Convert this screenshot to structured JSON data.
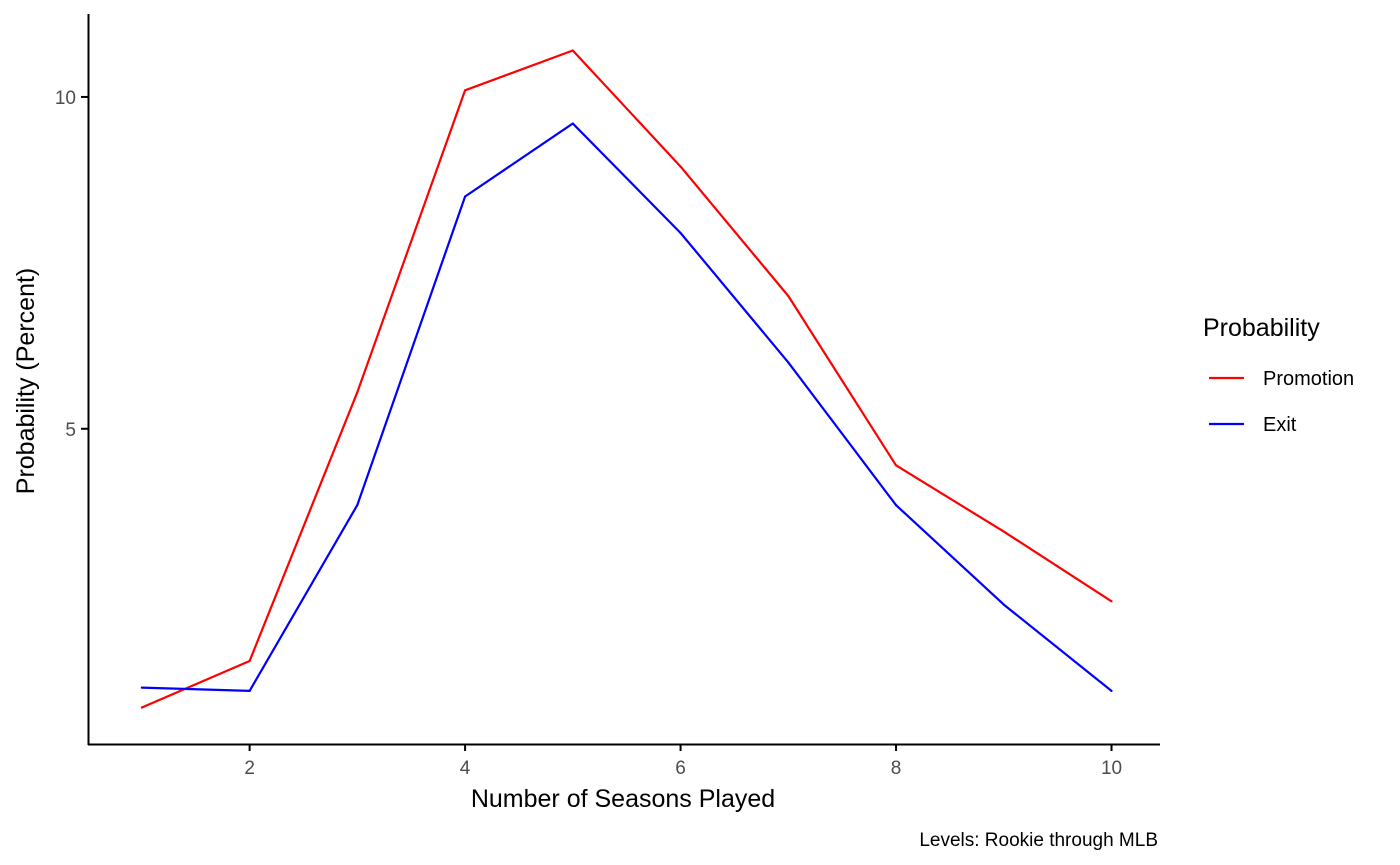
{
  "chart_data": {
    "type": "line",
    "xlabel": "Number of Seasons Played",
    "ylabel": "Probability (Percent)",
    "caption": "Levels: Rookie through MLB",
    "x": [
      1,
      2,
      3,
      4,
      5,
      6,
      7,
      8,
      9,
      10
    ],
    "xlim": [
      0.5,
      10.45
    ],
    "ylim": [
      0.25,
      11.25
    ],
    "x_ticks": [
      2,
      4,
      6,
      8,
      10
    ],
    "x_tick_labels": [
      "2",
      "4",
      "6",
      "8",
      "10"
    ],
    "y_ticks": [
      5,
      10
    ],
    "y_tick_labels": [
      "5",
      "10"
    ],
    "grid": false,
    "legend": {
      "title": "Probability",
      "placement": "right"
    },
    "series": [
      {
        "name": "Promotion",
        "color": "#ff0000",
        "values": [
          0.8,
          1.5,
          5.55,
          10.1,
          10.7,
          8.95,
          7.0,
          4.45,
          3.45,
          2.4
        ]
      },
      {
        "name": "Exit",
        "color": "#0000ff",
        "values": [
          1.1,
          1.05,
          3.85,
          8.5,
          9.6,
          7.95,
          6.0,
          3.85,
          2.35,
          1.05
        ]
      }
    ]
  }
}
